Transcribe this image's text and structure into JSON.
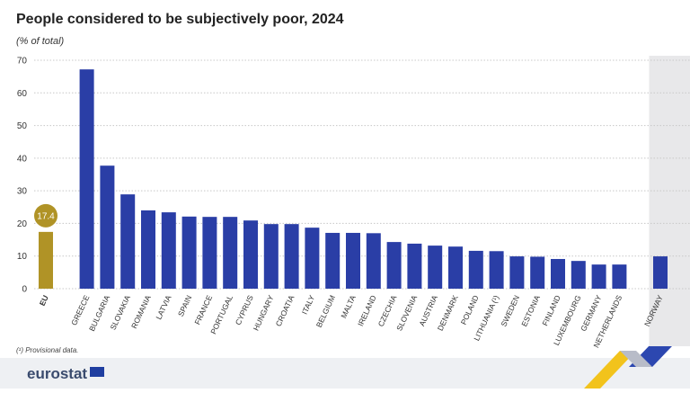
{
  "chart_data": {
    "type": "bar",
    "title": "People considered to be subjectively poor, 2024",
    "subtitle": "(% of total)",
    "footnote": "(¹) Provisional data.",
    "logo": "eurostat",
    "categories": [
      "EU",
      "GREECE",
      "BULGARIA",
      "SLOVAKIA",
      "ROMANIA",
      "LATVIA",
      "SPAIN",
      "FRANCE",
      "PORTUGAL",
      "CYPRUS",
      "HUNGARY",
      "CROATIA",
      "ITALY",
      "BELGIUM",
      "MALTA",
      "IRELAND",
      "CZECHIA",
      "SLOVENIA",
      "AUSTRIA",
      "DENMARK",
      "POLAND",
      "LITHUANIA (¹)",
      "SWEDEN",
      "ESTONIA",
      "FINLAND",
      "LUXEMBOURG",
      "GERMANY",
      "NETHERLANDS",
      "NORWAY"
    ],
    "values": [
      17.4,
      67.2,
      37.7,
      28.9,
      24.0,
      23.4,
      22.1,
      22.0,
      22.0,
      20.9,
      19.8,
      19.8,
      18.7,
      17.1,
      17.1,
      17.0,
      14.3,
      13.8,
      13.2,
      12.9,
      11.6,
      11.5,
      9.9,
      9.8,
      9.1,
      8.5,
      7.4,
      7.4,
      9.9
    ],
    "colors": [
      "#b09326",
      "#2a3ea6",
      "#2a3ea6",
      "#2a3ea6",
      "#2a3ea6",
      "#2a3ea6",
      "#2a3ea6",
      "#2a3ea6",
      "#2a3ea6",
      "#2a3ea6",
      "#2a3ea6",
      "#2a3ea6",
      "#2a3ea6",
      "#2a3ea6",
      "#2a3ea6",
      "#2a3ea6",
      "#2a3ea6",
      "#2a3ea6",
      "#2a3ea6",
      "#2a3ea6",
      "#2a3ea6",
      "#2a3ea6",
      "#2a3ea6",
      "#2a3ea6",
      "#2a3ea6",
      "#2a3ea6",
      "#2a3ea6",
      "#2a3ea6",
      "#2a3ea6"
    ],
    "ylim": [
      0,
      70
    ],
    "yticks": [
      0,
      10,
      20,
      30,
      40,
      50,
      60,
      70
    ],
    "grid": true
  }
}
